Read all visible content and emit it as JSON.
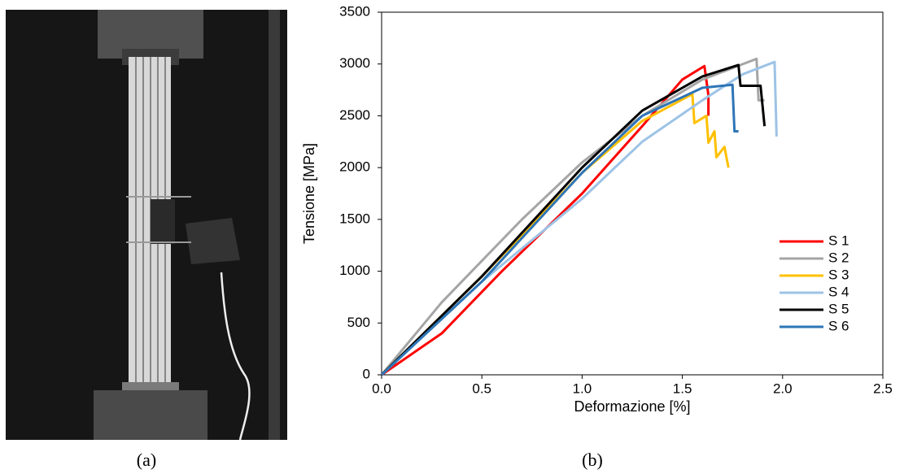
{
  "captions": {
    "a": "(a)",
    "b": "(b)"
  },
  "chart_data": {
    "type": "line",
    "xlabel": "Deformazione [%]",
    "ylabel": "Tensione [MPa]",
    "xlim": [
      0,
      2.5
    ],
    "xticks": [
      {
        "value": 0,
        "label": "0.0"
      },
      {
        "value": 0.5,
        "label": "0.5"
      },
      {
        "value": 1,
        "label": "1.0"
      },
      {
        "value": 1.5,
        "label": "1.5"
      },
      {
        "value": 2,
        "label": "2.0"
      },
      {
        "value": 2.5,
        "label": "2.5"
      }
    ],
    "ylim": [
      0,
      3500
    ],
    "yticks": [
      0,
      500,
      1000,
      1500,
      2000,
      2500,
      3000,
      3500
    ],
    "legend": "lower-right",
    "series": [
      {
        "name": "S 1",
        "color": "#ff0000",
        "x": [
          0,
          0.3,
          0.6,
          1.0,
          1.3,
          1.5,
          1.61,
          1.63,
          1.63
        ],
        "values": [
          0,
          400,
          1000,
          1750,
          2400,
          2850,
          2980,
          2700,
          2500
        ]
      },
      {
        "name": "S 2",
        "color": "#a5a5a5",
        "x": [
          0,
          0.3,
          0.7,
          1.0,
          1.3,
          1.6,
          1.87,
          1.88,
          1.91
        ],
        "values": [
          0,
          700,
          1500,
          2050,
          2500,
          2850,
          3050,
          2650,
          2650
        ]
      },
      {
        "name": "S 3",
        "color": "#ffc000",
        "x": [
          0,
          0.5,
          1.0,
          1.3,
          1.55,
          1.56,
          1.62,
          1.63,
          1.66,
          1.67,
          1.71,
          1.73
        ],
        "values": [
          0,
          950,
          1950,
          2450,
          2710,
          2430,
          2500,
          2240,
          2350,
          2100,
          2200,
          2000
        ]
      },
      {
        "name": "S 4",
        "color": "#9dc3e6",
        "x": [
          0,
          0.5,
          1.0,
          1.3,
          1.6,
          1.8,
          1.96,
          1.97
        ],
        "values": [
          0,
          900,
          1700,
          2250,
          2650,
          2900,
          3020,
          2300
        ]
      },
      {
        "name": "S 5",
        "color": "#000000",
        "x": [
          0,
          0.5,
          1.0,
          1.3,
          1.6,
          1.78,
          1.79,
          1.89,
          1.91
        ],
        "values": [
          0,
          950,
          2000,
          2550,
          2880,
          2990,
          2790,
          2790,
          2400
        ]
      },
      {
        "name": "S 6",
        "color": "#2e75b6",
        "x": [
          0,
          0.5,
          1.0,
          1.3,
          1.6,
          1.75,
          1.76,
          1.78
        ],
        "values": [
          0,
          900,
          1950,
          2500,
          2770,
          2800,
          2350,
          2350
        ]
      }
    ]
  }
}
